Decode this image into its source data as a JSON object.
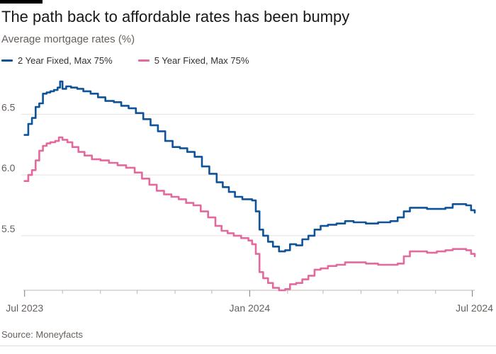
{
  "title": "The path back to affordable rates has been bumpy",
  "subtitle": "Average mortgage rates (%)",
  "source": "Source: Moneyfacts",
  "colors": {
    "series_2y": "#0f5499",
    "series_5y": "#e4699e",
    "grid": "#e6e2de",
    "axis": "#bdb7b2",
    "tick_text": "#66605c"
  },
  "chart_data": {
    "type": "line",
    "title": "The path back to affordable rates has been bumpy",
    "subtitle": "Average mortgage rates (%)",
    "x_axis": {
      "type": "date",
      "range": [
        "2023-06-30",
        "2024-07-03"
      ],
      "tick_labels": [
        {
          "date": "2023-07-01",
          "label": "Jul 2023"
        },
        {
          "date": "2024-01-01",
          "label": "Jan 2024"
        },
        {
          "date": "2024-07-01",
          "label": "Jul 2024"
        }
      ],
      "minor_ticks": [
        "2023-08-01",
        "2023-09-01",
        "2023-10-01",
        "2023-11-01",
        "2023-12-01",
        "2024-02-01",
        "2024-03-01",
        "2024-04-01",
        "2024-05-01",
        "2024-06-01"
      ]
    },
    "y_axis": {
      "range": [
        5.05,
        6.8
      ],
      "ticks": [
        5.5,
        6.0,
        6.5
      ],
      "tick_labels": [
        "5.5",
        "6.0",
        "6.5"
      ]
    },
    "grid": true,
    "legend_position": "top-left",
    "series": [
      {
        "name": "2 Year Fixed, Max 75%",
        "color": "#0f5499",
        "points": [
          [
            "2023-07-01",
            6.33
          ],
          [
            "2023-07-04",
            6.42
          ],
          [
            "2023-07-07",
            6.47
          ],
          [
            "2023-07-10",
            6.56
          ],
          [
            "2023-07-13",
            6.59
          ],
          [
            "2023-07-16",
            6.67
          ],
          [
            "2023-07-19",
            6.68
          ],
          [
            "2023-07-22",
            6.69
          ],
          [
            "2023-07-25",
            6.7
          ],
          [
            "2023-07-28",
            6.72
          ],
          [
            "2023-07-30",
            6.77
          ],
          [
            "2023-08-01",
            6.71
          ],
          [
            "2023-08-04",
            6.73
          ],
          [
            "2023-08-08",
            6.72
          ],
          [
            "2023-08-13",
            6.71
          ],
          [
            "2023-08-18",
            6.69
          ],
          [
            "2023-08-24",
            6.67
          ],
          [
            "2023-08-30",
            6.64
          ],
          [
            "2023-09-05",
            6.61
          ],
          [
            "2023-09-12",
            6.6
          ],
          [
            "2023-09-18",
            6.57
          ],
          [
            "2023-09-24",
            6.55
          ],
          [
            "2023-09-30",
            6.51
          ],
          [
            "2023-10-06",
            6.46
          ],
          [
            "2023-10-12",
            6.41
          ],
          [
            "2023-10-18",
            6.36
          ],
          [
            "2023-10-24",
            6.28
          ],
          [
            "2023-10-30",
            6.23
          ],
          [
            "2023-11-05",
            6.22
          ],
          [
            "2023-11-11",
            6.19
          ],
          [
            "2023-11-17",
            6.15
          ],
          [
            "2023-11-23",
            6.07
          ],
          [
            "2023-11-29",
            6.01
          ],
          [
            "2023-12-05",
            5.94
          ],
          [
            "2023-12-10",
            5.9
          ],
          [
            "2023-12-15",
            5.86
          ],
          [
            "2023-12-20",
            5.82
          ],
          [
            "2023-12-26",
            5.8
          ],
          [
            "2023-12-31",
            5.8
          ],
          [
            "2024-01-03",
            5.79
          ],
          [
            "2024-01-06",
            5.7
          ],
          [
            "2024-01-09",
            5.55
          ],
          [
            "2024-01-12",
            5.5
          ],
          [
            "2024-01-16",
            5.45
          ],
          [
            "2024-01-20",
            5.41
          ],
          [
            "2024-01-25",
            5.37
          ],
          [
            "2024-01-30",
            5.38
          ],
          [
            "2024-02-03",
            5.43
          ],
          [
            "2024-02-08",
            5.42
          ],
          [
            "2024-02-13",
            5.47
          ],
          [
            "2024-02-18",
            5.5
          ],
          [
            "2024-02-23",
            5.55
          ],
          [
            "2024-02-28",
            5.58
          ],
          [
            "2024-03-05",
            5.59
          ],
          [
            "2024-03-12",
            5.6
          ],
          [
            "2024-03-19",
            5.62
          ],
          [
            "2024-03-26",
            5.61
          ],
          [
            "2024-04-05",
            5.6
          ],
          [
            "2024-04-15",
            5.61
          ],
          [
            "2024-04-25",
            5.62
          ],
          [
            "2024-05-01",
            5.65
          ],
          [
            "2024-05-06",
            5.7
          ],
          [
            "2024-05-11",
            5.73
          ],
          [
            "2024-05-18",
            5.73
          ],
          [
            "2024-05-25",
            5.72
          ],
          [
            "2024-06-02",
            5.72
          ],
          [
            "2024-06-09",
            5.73
          ],
          [
            "2024-06-15",
            5.76
          ],
          [
            "2024-06-21",
            5.76
          ],
          [
            "2024-06-26",
            5.75
          ],
          [
            "2024-06-30",
            5.71
          ],
          [
            "2024-07-03",
            5.69
          ]
        ]
      },
      {
        "name": "5 Year Fixed, Max 75%",
        "color": "#e4699e",
        "points": [
          [
            "2023-07-01",
            5.95
          ],
          [
            "2023-07-04",
            6.0
          ],
          [
            "2023-07-07",
            6.04
          ],
          [
            "2023-07-10",
            6.12
          ],
          [
            "2023-07-13",
            6.2
          ],
          [
            "2023-07-16",
            6.24
          ],
          [
            "2023-07-19",
            6.26
          ],
          [
            "2023-07-22",
            6.27
          ],
          [
            "2023-07-26",
            6.28
          ],
          [
            "2023-07-29",
            6.31
          ],
          [
            "2023-08-01",
            6.29
          ],
          [
            "2023-08-05",
            6.27
          ],
          [
            "2023-08-09",
            6.23
          ],
          [
            "2023-08-14",
            6.19
          ],
          [
            "2023-08-19",
            6.16
          ],
          [
            "2023-08-25",
            6.13
          ],
          [
            "2023-09-01",
            6.12
          ],
          [
            "2023-09-08",
            6.1
          ],
          [
            "2023-09-15",
            6.08
          ],
          [
            "2023-09-22",
            6.06
          ],
          [
            "2023-09-29",
            6.02
          ],
          [
            "2023-10-05",
            5.97
          ],
          [
            "2023-10-11",
            5.92
          ],
          [
            "2023-10-17",
            5.87
          ],
          [
            "2023-10-23",
            5.84
          ],
          [
            "2023-10-29",
            5.82
          ],
          [
            "2023-11-04",
            5.8
          ],
          [
            "2023-11-10",
            5.77
          ],
          [
            "2023-11-16",
            5.75
          ],
          [
            "2023-11-22",
            5.7
          ],
          [
            "2023-11-28",
            5.65
          ],
          [
            "2023-12-04",
            5.58
          ],
          [
            "2023-12-09",
            5.54
          ],
          [
            "2023-12-14",
            5.52
          ],
          [
            "2023-12-19",
            5.5
          ],
          [
            "2023-12-25",
            5.48
          ],
          [
            "2023-12-31",
            5.46
          ],
          [
            "2024-01-03",
            5.43
          ],
          [
            "2024-01-06",
            5.35
          ],
          [
            "2024-01-09",
            5.2
          ],
          [
            "2024-01-12",
            5.15
          ],
          [
            "2024-01-16",
            5.11
          ],
          [
            "2024-01-20",
            5.07
          ],
          [
            "2024-01-25",
            5.05
          ],
          [
            "2024-01-30",
            5.06
          ],
          [
            "2024-02-03",
            5.1
          ],
          [
            "2024-02-08",
            5.11
          ],
          [
            "2024-02-13",
            5.14
          ],
          [
            "2024-02-18",
            5.17
          ],
          [
            "2024-02-23",
            5.22
          ],
          [
            "2024-02-28",
            5.23
          ],
          [
            "2024-03-05",
            5.25
          ],
          [
            "2024-03-12",
            5.26
          ],
          [
            "2024-03-19",
            5.28
          ],
          [
            "2024-03-26",
            5.28
          ],
          [
            "2024-04-05",
            5.27
          ],
          [
            "2024-04-15",
            5.26
          ],
          [
            "2024-04-25",
            5.26
          ],
          [
            "2024-05-01",
            5.27
          ],
          [
            "2024-05-06",
            5.33
          ],
          [
            "2024-05-11",
            5.37
          ],
          [
            "2024-05-18",
            5.37
          ],
          [
            "2024-05-25",
            5.36
          ],
          [
            "2024-06-02",
            5.37
          ],
          [
            "2024-06-09",
            5.38
          ],
          [
            "2024-06-15",
            5.39
          ],
          [
            "2024-06-21",
            5.39
          ],
          [
            "2024-06-26",
            5.38
          ],
          [
            "2024-06-30",
            5.35
          ],
          [
            "2024-07-03",
            5.33
          ]
        ]
      }
    ]
  }
}
